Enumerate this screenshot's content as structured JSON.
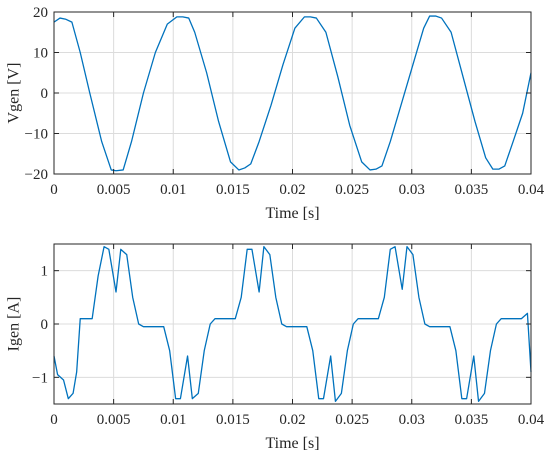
{
  "chart_data": [
    {
      "type": "line",
      "title": "",
      "xlabel": "Time [s]",
      "ylabel": "Vgen [V]",
      "xlim": [
        0,
        0.04
      ],
      "ylim": [
        -20,
        20
      ],
      "xticks": [
        0,
        0.005,
        0.01,
        0.015,
        0.02,
        0.025,
        0.03,
        0.035,
        0.04
      ],
      "xtick_labels": [
        "0",
        "0.005",
        "0.01",
        "0.015",
        "0.02",
        "0.025",
        "0.03",
        "0.035",
        "0.04"
      ],
      "yticks": [
        -20,
        -10,
        0,
        10,
        20
      ],
      "ytick_labels": [
        "−20",
        "−10",
        "0",
        "10",
        "20"
      ],
      "grid": true,
      "color": "#0072bd",
      "series": [
        {
          "x": [
            0,
            0.0005,
            0.001,
            0.0015,
            0.0022,
            0.003,
            0.004,
            0.0048,
            0.0052,
            0.0058,
            0.0065,
            0.0075,
            0.0085,
            0.0095,
            0.0103,
            0.0108,
            0.0113,
            0.0118,
            0.0128,
            0.0138,
            0.0148,
            0.0155,
            0.016,
            0.0165,
            0.0172,
            0.0182,
            0.0192,
            0.0202,
            0.021,
            0.0215,
            0.022,
            0.0228,
            0.0238,
            0.0248,
            0.0258,
            0.0265,
            0.027,
            0.0275,
            0.0282,
            0.0292,
            0.0302,
            0.031,
            0.0315,
            0.032,
            0.0325,
            0.0333,
            0.0343,
            0.0353,
            0.0362,
            0.0368,
            0.0373,
            0.0378,
            0.0385,
            0.0393,
            0.04
          ],
          "y": [
            17.5,
            18.5,
            18.2,
            17.5,
            10,
            0,
            -12,
            -19,
            -19.2,
            -19,
            -12,
            0,
            10,
            17,
            18.8,
            18.8,
            18.5,
            15,
            5,
            -7,
            -17,
            -19,
            -18.5,
            -17.5,
            -12,
            -3,
            7,
            16,
            18.8,
            18.8,
            18.5,
            15,
            4,
            -8,
            -17,
            -19,
            -18.8,
            -18,
            -12,
            -2,
            8,
            16,
            19,
            19,
            18.5,
            15,
            4,
            -7,
            -16,
            -18.8,
            -18.8,
            -18,
            -12,
            -5,
            5
          ]
        }
      ]
    },
    {
      "type": "line",
      "title": "",
      "xlabel": "Time [s]",
      "ylabel": "Igen [A]",
      "xlim": [
        0,
        0.04
      ],
      "ylim": [
        -1.5,
        1.5
      ],
      "xticks": [
        0,
        0.005,
        0.01,
        0.015,
        0.02,
        0.025,
        0.03,
        0.035,
        0.04
      ],
      "xtick_labels": [
        "0",
        "0.005",
        "0.01",
        "0.015",
        "0.02",
        "0.025",
        "0.03",
        "0.035",
        "0.04"
      ],
      "yticks": [
        -1,
        0,
        1
      ],
      "ytick_labels": [
        "−1",
        "0",
        "1"
      ],
      "grid": true,
      "color": "#0072bd",
      "series": [
        {
          "x": [
            0,
            0.0003,
            0.0008,
            0.0012,
            0.0016,
            0.0019,
            0.0022,
            0.0032,
            0.0037,
            0.0042,
            0.0046,
            0.0052,
            0.0056,
            0.0061,
            0.0066,
            0.0071,
            0.0075,
            0.0082,
            0.0092,
            0.0097,
            0.0102,
            0.0106,
            0.0112,
            0.0116,
            0.0121,
            0.0126,
            0.0131,
            0.0135,
            0.0142,
            0.0152,
            0.0157,
            0.0162,
            0.0166,
            0.0172,
            0.0176,
            0.0181,
            0.0186,
            0.0191,
            0.0195,
            0.0202,
            0.0212,
            0.0217,
            0.0222,
            0.0226,
            0.0232,
            0.0236,
            0.0241,
            0.0246,
            0.0251,
            0.0255,
            0.0262,
            0.0272,
            0.0277,
            0.0282,
            0.0286,
            0.0292,
            0.0296,
            0.0301,
            0.0306,
            0.0311,
            0.0315,
            0.0322,
            0.0332,
            0.0337,
            0.0342,
            0.0346,
            0.0352,
            0.0356,
            0.0361,
            0.0366,
            0.0371,
            0.0375,
            0.0382,
            0.0392,
            0.0397,
            0.04
          ],
          "y": [
            -0.6,
            -0.95,
            -1.05,
            -1.4,
            -1.3,
            -0.9,
            0.1,
            0.1,
            0.9,
            1.45,
            1.4,
            0.6,
            1.4,
            1.3,
            0.5,
            0,
            -0.05,
            -0.05,
            -0.05,
            -0.5,
            -1.4,
            -1.4,
            -0.6,
            -1.4,
            -1.3,
            -0.5,
            0,
            0.1,
            0.1,
            0.1,
            0.5,
            1.4,
            1.4,
            0.6,
            1.45,
            1.3,
            0.5,
            0,
            -0.05,
            -0.05,
            -0.05,
            -0.5,
            -1.4,
            -1.4,
            -0.6,
            -1.45,
            -1.3,
            -0.5,
            0,
            0.1,
            0.1,
            0.1,
            0.5,
            1.4,
            1.45,
            0.65,
            1.45,
            1.3,
            0.5,
            0,
            -0.05,
            -0.05,
            -0.05,
            -0.5,
            -1.4,
            -1.4,
            -0.6,
            -1.45,
            -1.3,
            -0.5,
            0,
            0.1,
            0.1,
            0.1,
            0.2,
            -0.9
          ]
        }
      ]
    }
  ]
}
